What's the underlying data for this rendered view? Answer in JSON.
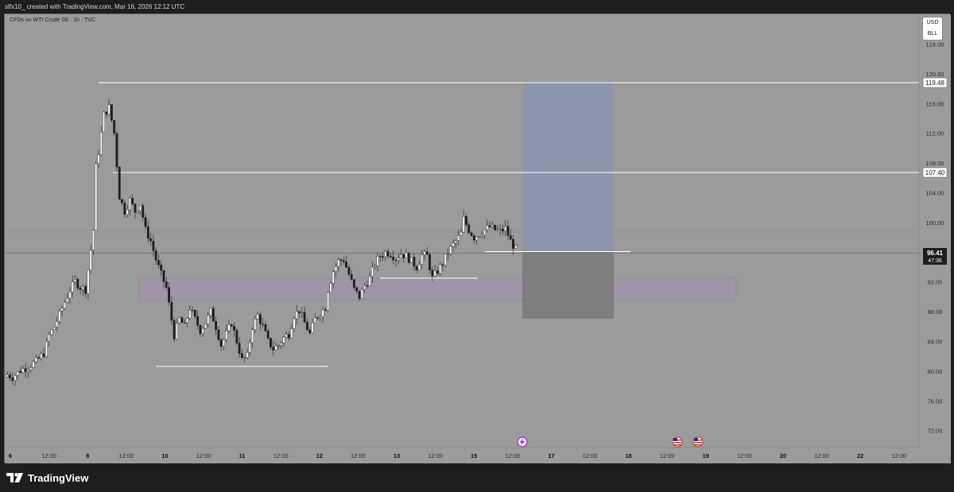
{
  "header": {
    "caption": "slfx10_ created with TradingView.com, Mar 16, 2026 12:12 UTC"
  },
  "chart": {
    "symbol_line": "CFDs on WTI Crude Oil · 1h · TVC",
    "currency": "USD",
    "unit": "BLL",
    "price_ticks": [
      "124.00",
      "120.00",
      "116.00",
      "112.00",
      "108.00",
      "104.00",
      "100.00",
      "96.00",
      "92.00",
      "88.00",
      "84.00",
      "80.00",
      "76.00",
      "72.00"
    ],
    "time_ticks": [
      "6",
      "12:00",
      "8",
      "12:00",
      "10",
      "12:00",
      "11",
      "12:00",
      "12",
      "12:00",
      "13",
      "12:00",
      "15",
      "12:00",
      "17",
      "12:00",
      "18",
      "12:00",
      "19",
      "12:00",
      "20",
      "12:00",
      "22",
      "12:00"
    ],
    "levels": [
      {
        "label": "119.48"
      },
      {
        "label": "107.40"
      }
    ],
    "last_price": {
      "value": "96.41",
      "countdown": "47:36"
    },
    "colors": {
      "background": "#9b9b9b",
      "candle_up": "#ffffff",
      "candle_down": "#1e1e1e",
      "wick": "#1e1e1e",
      "target_zone": "#8c97ae",
      "stop_zone": "#7e7e7e",
      "demand_zone": "#a294a8"
    },
    "event_icons": [
      "lightning-icon",
      "us-flag-icon",
      "us-flag-icon"
    ]
  },
  "footer": {
    "brand": "TradingView"
  },
  "chart_data": {
    "type": "candlestick",
    "title": "CFDs on WTI Crude Oil · 1h · TVC",
    "ylabel": "USD",
    "ylim": [
      70.5,
      126
    ],
    "x": [
      "6",
      "12:00",
      "8",
      "12:00",
      "10",
      "12:00",
      "11",
      "12:00",
      "12",
      "12:00",
      "13",
      "12:00",
      "15",
      "12:00",
      "17",
      "12:00",
      "18",
      "12:00",
      "19",
      "12:00",
      "20",
      "12:00",
      "22",
      "12:00"
    ],
    "close_path": [
      [
        0,
        79.5
      ],
      [
        2,
        79.2
      ],
      [
        5,
        80.1
      ],
      [
        8,
        80.6
      ],
      [
        11,
        81.3
      ],
      [
        14,
        82.4
      ],
      [
        16,
        84.8
      ],
      [
        18,
        86.0
      ],
      [
        20,
        87.6
      ],
      [
        22,
        89.3
      ],
      [
        24,
        90.9
      ],
      [
        26,
        92.1
      ],
      [
        28,
        91.3
      ],
      [
        30,
        91.0
      ],
      [
        33,
        99.0
      ],
      [
        34,
        107.5
      ],
      [
        35,
        109.5
      ],
      [
        37,
        114.5
      ],
      [
        39,
        115.5
      ],
      [
        41,
        112.0
      ],
      [
        43,
        103.5
      ],
      [
        45,
        101.5
      ],
      [
        47,
        103.0
      ],
      [
        49,
        101.5
      ],
      [
        51,
        102.5
      ],
      [
        53,
        99.0
      ],
      [
        55,
        97.5
      ],
      [
        57,
        95.0
      ],
      [
        59,
        93.0
      ],
      [
        61,
        91.2
      ],
      [
        62,
        89.0
      ],
      [
        64,
        84.8
      ],
      [
        66,
        87.0
      ],
      [
        68,
        86.0
      ],
      [
        70,
        88.5
      ],
      [
        72,
        87.0
      ],
      [
        74,
        85.5
      ],
      [
        76,
        86.5
      ],
      [
        78,
        88.0
      ],
      [
        80,
        86.0
      ],
      [
        82,
        83.5
      ],
      [
        84,
        85.0
      ],
      [
        86,
        86.5
      ],
      [
        88,
        84.0
      ],
      [
        90,
        81.5
      ],
      [
        92,
        82.0
      ],
      [
        94,
        86.0
      ],
      [
        96,
        87.5
      ],
      [
        98,
        86.0
      ],
      [
        100,
        84.0
      ],
      [
        102,
        83.0
      ],
      [
        104,
        83.5
      ],
      [
        106,
        84.5
      ],
      [
        108,
        85.0
      ],
      [
        110,
        87.5
      ],
      [
        112,
        88.2
      ],
      [
        114,
        86.5
      ],
      [
        116,
        85.0
      ],
      [
        118,
        87.0
      ],
      [
        120,
        87.8
      ],
      [
        122,
        88.6
      ],
      [
        123,
        91.0
      ],
      [
        125,
        93.5
      ],
      [
        127,
        94.8
      ],
      [
        129,
        95.0
      ],
      [
        131,
        93.0
      ],
      [
        133,
        91.0
      ],
      [
        135,
        90.0
      ],
      [
        137,
        91.5
      ],
      [
        139,
        92.5
      ],
      [
        141,
        94.5
      ],
      [
        143,
        95.5
      ],
      [
        145,
        96.0
      ],
      [
        147,
        95.8
      ],
      [
        149,
        95.2
      ],
      [
        151,
        95.8
      ],
      [
        153,
        95.5
      ],
      [
        155,
        94.8
      ],
      [
        157,
        94.0
      ],
      [
        159,
        95.6
      ],
      [
        161,
        95.5
      ],
      [
        163,
        92.5
      ],
      [
        165,
        93.5
      ],
      [
        167,
        94.5
      ],
      [
        169,
        96.0
      ],
      [
        171,
        97.0
      ],
      [
        173,
        98.0
      ],
      [
        174,
        98.5
      ],
      [
        175,
        100.5
      ],
      [
        177,
        99.0
      ],
      [
        179,
        98.0
      ],
      [
        181,
        98.5
      ],
      [
        183,
        99.0
      ],
      [
        185,
        99.4
      ],
      [
        187,
        99.0
      ],
      [
        189,
        98.8
      ],
      [
        191,
        99.2
      ],
      [
        193,
        97.5
      ],
      [
        195,
        96.4
      ]
    ],
    "annotations": {
      "horizontal_lines": [
        119.48,
        107.4,
        93.2,
        81.2,
        96.5
      ],
      "long_position": {
        "entry": 96.41,
        "target": 119.48,
        "stop": 87.7
      },
      "zone": [
        90.3,
        93.2
      ]
    }
  }
}
